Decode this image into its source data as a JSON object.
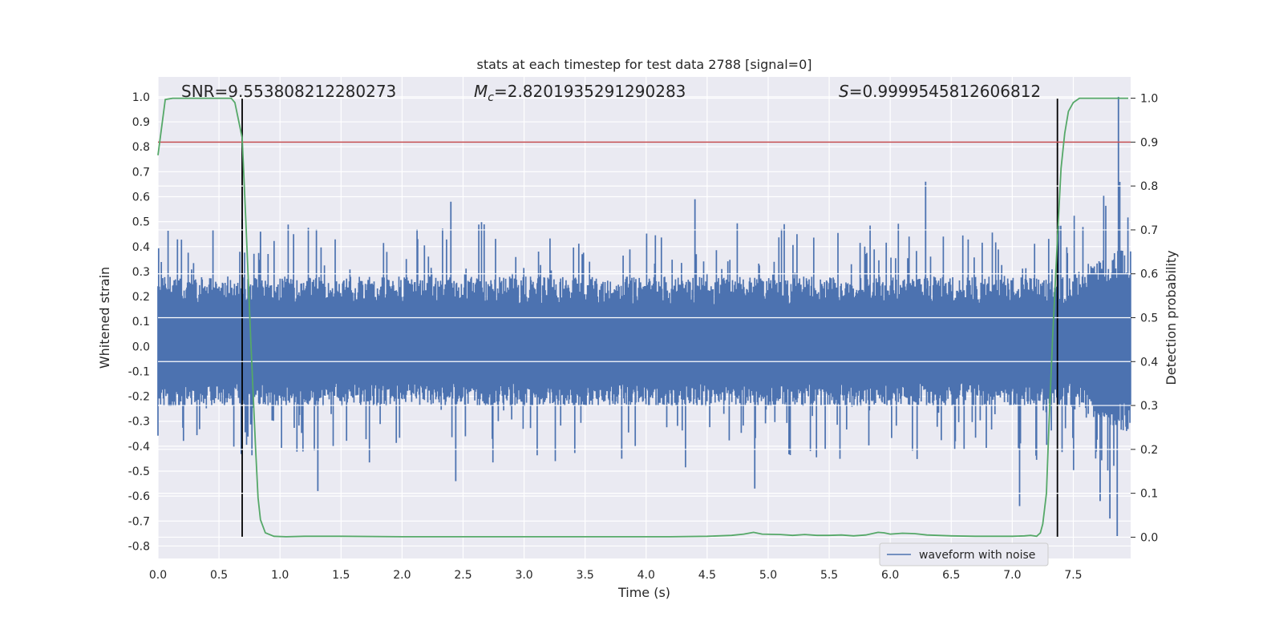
{
  "chart_data": {
    "type": "line",
    "title": "stats at each timestep for test data 2788 [signal=0]",
    "xlabel": "Time (s)",
    "ylabel": "Whitened strain",
    "y2label": "Detection probability",
    "xlim": [
      0.0,
      7.97
    ],
    "ylim": [
      -0.85,
      1.08
    ],
    "y2lim": [
      -0.0485,
      1.0485
    ],
    "x_ticks": [
      "0.0",
      "0.5",
      "1.0",
      "1.5",
      "2.0",
      "2.5",
      "3.0",
      "3.5",
      "4.0",
      "4.5",
      "5.0",
      "5.5",
      "6.0",
      "6.5",
      "7.0",
      "7.5"
    ],
    "y_ticks": [
      "1.0",
      "0.9",
      "0.8",
      "0.7",
      "0.6",
      "0.5",
      "0.4",
      "0.3",
      "0.2",
      "0.1",
      "0.0",
      "-0.1",
      "-0.2",
      "-0.3",
      "-0.4",
      "-0.5",
      "-0.6",
      "-0.7",
      "-0.8"
    ],
    "y2_ticks": [
      "1.0",
      "0.9",
      "0.8",
      "0.7",
      "0.6",
      "0.5",
      "0.4",
      "0.3",
      "0.2",
      "0.1",
      "0.0"
    ],
    "annotations": {
      "snr": "SNR=9.553808212280273",
      "mc_symbol": "M",
      "mc_sub": "c",
      "mc_value": "=2.8201935291290283",
      "s_symbol": "S",
      "s_value": "=0.9999545812606812"
    },
    "legend": {
      "label": "waveform with noise",
      "location": "lower-right"
    },
    "threshold": {
      "value": 0.9,
      "axis": "right",
      "color": "#c44e52"
    },
    "detection_markers_x": [
      0.69,
      7.37
    ],
    "waveform": {
      "name": "waveform with noise",
      "color": "#4c72b0",
      "sampling_rate": 2048,
      "band_low": -0.24,
      "band_high": 0.28,
      "peak_min": -0.76,
      "peak_max": 1.0,
      "notable_spikes": [
        {
          "x": 0.69,
          "y": 0.51
        },
        {
          "x": 0.84,
          "y": 0.46
        },
        {
          "x": 1.31,
          "y": -0.58
        },
        {
          "x": 2.4,
          "y": 0.58
        },
        {
          "x": 2.44,
          "y": -0.54
        },
        {
          "x": 3.8,
          "y": -0.45
        },
        {
          "x": 4.4,
          "y": 0.59
        },
        {
          "x": 4.89,
          "y": -0.57
        },
        {
          "x": 6.29,
          "y": 0.66
        },
        {
          "x": 7.06,
          "y": -0.64
        },
        {
          "x": 7.87,
          "y": 1.0
        },
        {
          "x": 7.86,
          "y": -0.76
        },
        {
          "x": 7.8,
          "y": -0.69
        },
        {
          "x": 7.72,
          "y": -0.62
        }
      ]
    },
    "detection_probability": {
      "name": "detection probability",
      "color": "#55a868",
      "x": [
        0.0,
        0.06,
        0.12,
        0.2,
        0.3,
        0.4,
        0.5,
        0.6,
        0.63,
        0.69,
        0.72,
        0.76,
        0.8,
        0.82,
        0.84,
        0.88,
        0.95,
        1.05,
        1.2,
        1.5,
        2.0,
        2.5,
        3.0,
        3.5,
        3.8,
        4.2,
        4.5,
        4.7,
        4.8,
        4.88,
        4.95,
        5.1,
        5.2,
        5.3,
        5.4,
        5.5,
        5.6,
        5.7,
        5.8,
        5.9,
        5.95,
        6.0,
        6.1,
        6.2,
        6.3,
        6.5,
        6.7,
        6.9,
        7.0,
        7.1,
        7.15,
        7.2,
        7.23,
        7.25,
        7.28,
        7.3,
        7.33,
        7.37,
        7.4,
        7.43,
        7.46,
        7.5,
        7.55,
        7.6,
        7.7,
        7.8,
        7.95
      ],
      "y": [
        0.87,
        0.997,
        1.0,
        1.0,
        1.0,
        1.0,
        1.0,
        1.0,
        0.99,
        0.91,
        0.72,
        0.45,
        0.2,
        0.09,
        0.04,
        0.01,
        0.002,
        0.001,
        0.002,
        0.002,
        0.001,
        0.001,
        0.001,
        0.001,
        0.001,
        0.001,
        0.002,
        0.004,
        0.007,
        0.011,
        0.007,
        0.006,
        0.004,
        0.006,
        0.004,
        0.004,
        0.005,
        0.003,
        0.005,
        0.011,
        0.01,
        0.007,
        0.009,
        0.008,
        0.005,
        0.003,
        0.002,
        0.002,
        0.002,
        0.003,
        0.004,
        0.002,
        0.01,
        0.03,
        0.1,
        0.25,
        0.45,
        0.68,
        0.84,
        0.92,
        0.97,
        0.99,
        1.0,
        1.0,
        1.0,
        1.0,
        1.0
      ]
    }
  }
}
